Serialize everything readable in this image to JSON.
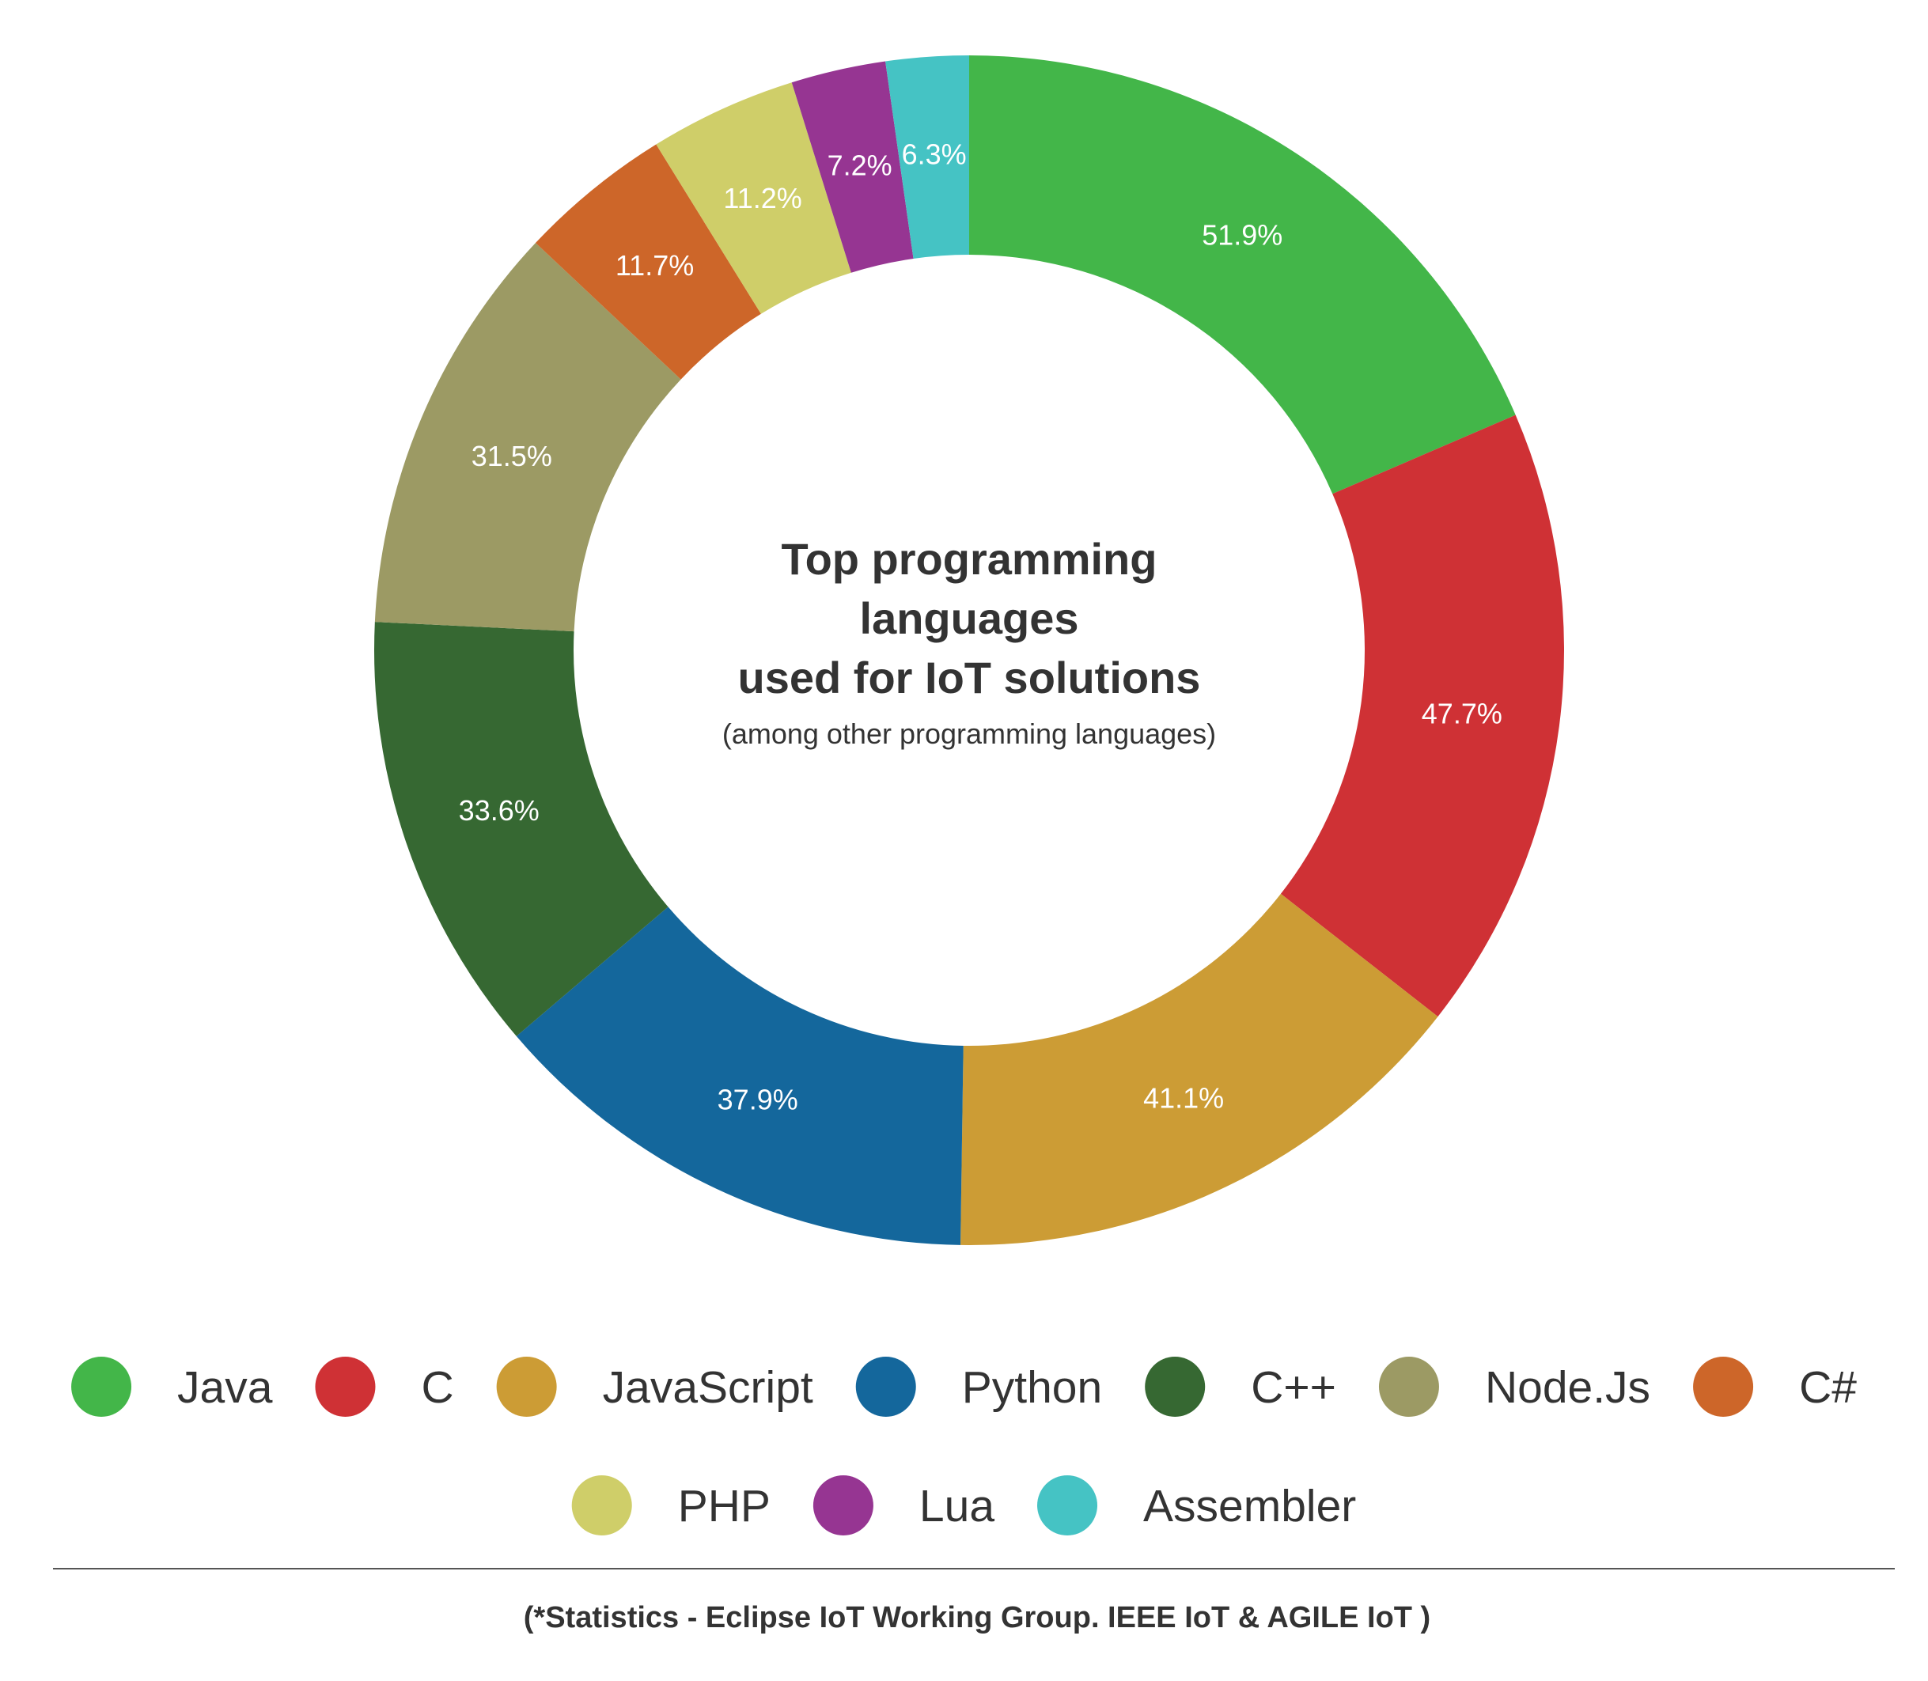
{
  "chart_data": {
    "type": "pie",
    "title": "Top programming languages used for IoT solutions",
    "title_lines": [
      "Top programming",
      "languages",
      "used for IoT solutions"
    ],
    "subtitle": "(among other programming languages)",
    "categories": [
      "Java",
      "C",
      "JavaScript",
      "Python",
      "C++",
      "Node.Js",
      "C#",
      "PHP",
      "Lua",
      "Assembler"
    ],
    "values": [
      51.9,
      47.7,
      41.1,
      37.9,
      33.6,
      31.5,
      11.7,
      11.2,
      7.2,
      6.3
    ],
    "labels": [
      "51.9%",
      "47.7%",
      "41.1%",
      "37.9%",
      "33.6%",
      "31.5%",
      "11.7%",
      "11.2%",
      "7.2%",
      "6.3%"
    ],
    "colors": [
      "#43b649",
      "#cf3135",
      "#cc9c35",
      "#14679c",
      "#366832",
      "#9c9a64",
      "#cd6629",
      "#cfce69",
      "#963592",
      "#45c3c4"
    ],
    "donut": true,
    "legend_position": "bottom"
  },
  "footer": {
    "note": "(*Statistics - Eclipse IoT Working Group. IEEE IoT & AGILE IoT )"
  }
}
